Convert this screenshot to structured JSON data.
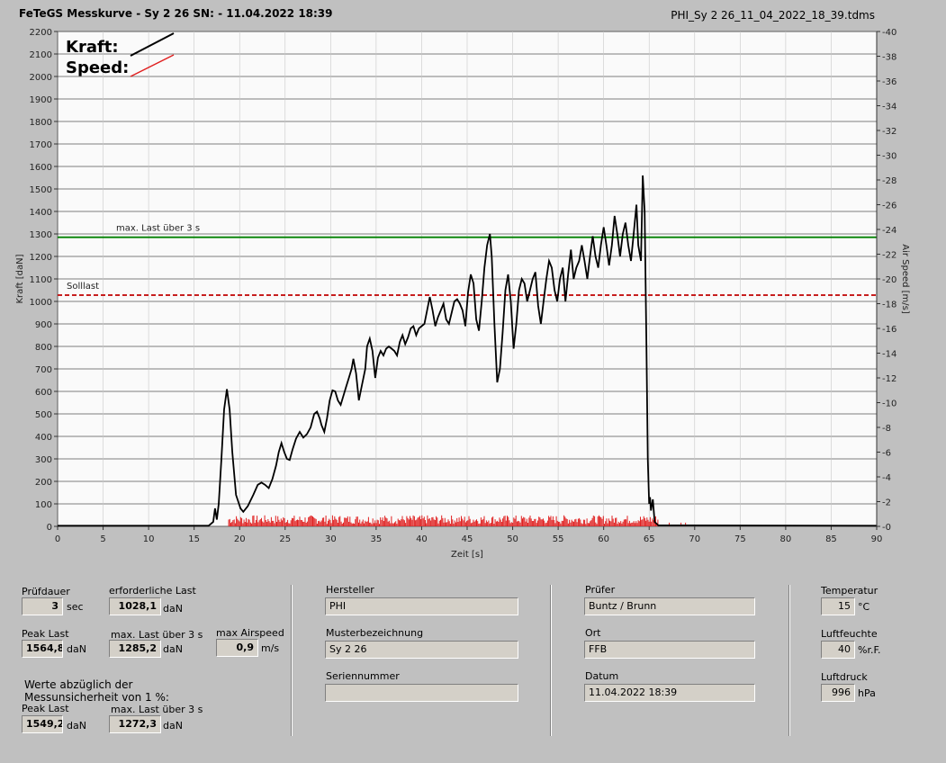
{
  "header": {
    "title": "FeTeGS Messkurve - Sy 2 26  SN:  - 11.04.2022 18:39",
    "filename": "PHI_Sy 2 26_11_04_2022_18_39.tdms"
  },
  "chart_data": {
    "type": "line",
    "xlabel": "Zeit [s]",
    "ylabel": "Kraft [daN]",
    "y2label": "Air Speed [m/s]",
    "xlim": [
      0,
      90
    ],
    "ylim": [
      0,
      2200
    ],
    "y2lim": [
      0,
      40
    ],
    "xticks": [
      0,
      5,
      10,
      15,
      20,
      25,
      30,
      35,
      40,
      45,
      50,
      55,
      60,
      65,
      70,
      75,
      80,
      85,
      90
    ],
    "yticks": [
      0,
      100,
      200,
      300,
      400,
      500,
      600,
      700,
      800,
      900,
      1000,
      1100,
      1200,
      1300,
      1400,
      1500,
      1600,
      1700,
      1800,
      1900,
      2000,
      2100,
      2200
    ],
    "y2ticks": [
      0,
      2,
      4,
      6,
      8,
      10,
      12,
      14,
      16,
      18,
      20,
      22,
      24,
      26,
      28,
      30,
      32,
      34,
      36,
      38,
      40
    ],
    "grid": true,
    "legend": {
      "placement": "top-left",
      "entries": [
        {
          "name": "Kraft:",
          "color": "#000000"
        },
        {
          "name": "Speed:",
          "color": "#e02020"
        }
      ]
    },
    "reference_lines": [
      {
        "label": "max. Last über  3 s",
        "y": 1285.2,
        "color": "#008000",
        "style": "solid"
      },
      {
        "label": "Solllast",
        "y": 1028.1,
        "color": "#c00000",
        "style": "dashed"
      }
    ],
    "series": [
      {
        "name": "Kraft:",
        "color": "#000000",
        "points": [
          [
            0,
            3
          ],
          [
            16.6,
            3
          ],
          [
            17.1,
            20
          ],
          [
            17.3,
            80
          ],
          [
            17.5,
            30
          ],
          [
            17.7,
            100
          ],
          [
            18.0,
            300
          ],
          [
            18.3,
            520
          ],
          [
            18.6,
            610
          ],
          [
            18.9,
            520
          ],
          [
            19.2,
            330
          ],
          [
            19.6,
            140
          ],
          [
            20.1,
            80
          ],
          [
            20.4,
            65
          ],
          [
            20.9,
            90
          ],
          [
            21.5,
            140
          ],
          [
            22.0,
            185
          ],
          [
            22.4,
            195
          ],
          [
            22.8,
            185
          ],
          [
            23.2,
            170
          ],
          [
            23.6,
            210
          ],
          [
            24.0,
            270
          ],
          [
            24.3,
            330
          ],
          [
            24.6,
            370
          ],
          [
            24.9,
            330
          ],
          [
            25.2,
            300
          ],
          [
            25.5,
            295
          ],
          [
            25.8,
            340
          ],
          [
            26.2,
            390
          ],
          [
            26.6,
            420
          ],
          [
            27.0,
            395
          ],
          [
            27.4,
            410
          ],
          [
            27.8,
            440
          ],
          [
            28.2,
            500
          ],
          [
            28.5,
            510
          ],
          [
            28.8,
            480
          ],
          [
            29.0,
            450
          ],
          [
            29.3,
            420
          ],
          [
            29.6,
            480
          ],
          [
            29.9,
            560
          ],
          [
            30.2,
            605
          ],
          [
            30.5,
            600
          ],
          [
            30.8,
            560
          ],
          [
            31.1,
            540
          ],
          [
            31.4,
            580
          ],
          [
            31.7,
            620
          ],
          [
            32.0,
            660
          ],
          [
            32.3,
            700
          ],
          [
            32.5,
            745
          ],
          [
            32.8,
            680
          ],
          [
            33.1,
            560
          ],
          [
            33.4,
            620
          ],
          [
            33.8,
            700
          ],
          [
            34.0,
            800
          ],
          [
            34.3,
            835
          ],
          [
            34.6,
            780
          ],
          [
            34.9,
            660
          ],
          [
            35.2,
            750
          ],
          [
            35.5,
            780
          ],
          [
            35.8,
            760
          ],
          [
            36.1,
            790
          ],
          [
            36.4,
            800
          ],
          [
            36.7,
            790
          ],
          [
            37.0,
            780
          ],
          [
            37.3,
            760
          ],
          [
            37.6,
            820
          ],
          [
            37.9,
            850
          ],
          [
            38.2,
            810
          ],
          [
            38.5,
            840
          ],
          [
            38.8,
            880
          ],
          [
            39.1,
            890
          ],
          [
            39.4,
            850
          ],
          [
            39.7,
            880
          ],
          [
            40.0,
            890
          ],
          [
            40.3,
            900
          ],
          [
            40.6,
            960
          ],
          [
            40.9,
            1020
          ],
          [
            41.2,
            960
          ],
          [
            41.5,
            890
          ],
          [
            41.8,
            930
          ],
          [
            42.1,
            960
          ],
          [
            42.4,
            990
          ],
          [
            42.7,
            920
          ],
          [
            43.0,
            900
          ],
          [
            43.3,
            950
          ],
          [
            43.6,
            1000
          ],
          [
            43.9,
            1010
          ],
          [
            44.2,
            990
          ],
          [
            44.5,
            960
          ],
          [
            44.8,
            890
          ],
          [
            45.1,
            1040
          ],
          [
            45.4,
            1120
          ],
          [
            45.7,
            1080
          ],
          [
            46.0,
            920
          ],
          [
            46.3,
            870
          ],
          [
            46.6,
            1000
          ],
          [
            46.9,
            1150
          ],
          [
            47.2,
            1250
          ],
          [
            47.5,
            1300
          ],
          [
            47.7,
            1200
          ],
          [
            48.0,
            900
          ],
          [
            48.3,
            640
          ],
          [
            48.6,
            700
          ],
          [
            48.9,
            860
          ],
          [
            49.2,
            1050
          ],
          [
            49.5,
            1120
          ],
          [
            49.8,
            1000
          ],
          [
            50.1,
            790
          ],
          [
            50.4,
            900
          ],
          [
            50.7,
            1050
          ],
          [
            51.0,
            1100
          ],
          [
            51.3,
            1080
          ],
          [
            51.6,
            1000
          ],
          [
            51.9,
            1050
          ],
          [
            52.2,
            1100
          ],
          [
            52.5,
            1130
          ],
          [
            52.8,
            980
          ],
          [
            53.1,
            900
          ],
          [
            53.4,
            1000
          ],
          [
            53.7,
            1100
          ],
          [
            54.0,
            1180
          ],
          [
            54.3,
            1150
          ],
          [
            54.6,
            1050
          ],
          [
            54.9,
            1000
          ],
          [
            55.2,
            1100
          ],
          [
            55.5,
            1150
          ],
          [
            55.8,
            1000
          ],
          [
            56.1,
            1120
          ],
          [
            56.4,
            1230
          ],
          [
            56.7,
            1100
          ],
          [
            57.0,
            1150
          ],
          [
            57.3,
            1180
          ],
          [
            57.6,
            1250
          ],
          [
            57.9,
            1180
          ],
          [
            58.2,
            1100
          ],
          [
            58.5,
            1200
          ],
          [
            58.8,
            1290
          ],
          [
            59.1,
            1200
          ],
          [
            59.4,
            1150
          ],
          [
            59.7,
            1250
          ],
          [
            60.0,
            1330
          ],
          [
            60.3,
            1250
          ],
          [
            60.6,
            1160
          ],
          [
            60.9,
            1250
          ],
          [
            61.2,
            1380
          ],
          [
            61.5,
            1300
          ],
          [
            61.8,
            1200
          ],
          [
            62.1,
            1300
          ],
          [
            62.4,
            1350
          ],
          [
            62.7,
            1250
          ],
          [
            63.0,
            1180
          ],
          [
            63.3,
            1300
          ],
          [
            63.6,
            1430
          ],
          [
            63.8,
            1250
          ],
          [
            64.1,
            1180
          ],
          [
            64.3,
            1560
          ],
          [
            64.5,
            1400
          ],
          [
            64.7,
            800
          ],
          [
            64.85,
            300
          ],
          [
            65.0,
            100
          ],
          [
            65.1,
            130
          ],
          [
            65.2,
            70
          ],
          [
            65.4,
            120
          ],
          [
            65.6,
            20
          ],
          [
            66.0,
            5
          ],
          [
            90,
            3
          ]
        ]
      },
      {
        "name": "Speed:",
        "color": "#e02020",
        "baseline_noise_until_s": 66,
        "approx_level_ms": 0.5
      }
    ]
  },
  "panel": {
    "pruefdauer_label": "Prüfdauer",
    "pruefdauer_value": "3",
    "pruefdauer_unit": "sec",
    "erf_last_label": "erforderliche Last",
    "erf_last_value": "1028,1",
    "erf_last_unit": "daN",
    "peak_last_label": "Peak Last",
    "peak_last_value": "1564,8",
    "peak_last_unit": "daN",
    "max_last_label": "max. Last über  3 s",
    "max_last_value": "1285,2",
    "max_last_unit": "daN",
    "max_airspeed_label": "max Airspeed",
    "max_airspeed_value": "0,9",
    "max_airspeed_unit": "m/s",
    "note_line1": "Werte abzüglich der",
    "note_line2": "Messunsicherheit von 1   %:",
    "peak_last2_label": "Peak Last",
    "peak_last2_value": "1549,2",
    "peak_last2_unit": "daN",
    "max_last2_label": "max. Last über  3 s",
    "max_last2_value": "1272,3",
    "max_last2_unit": "daN",
    "hersteller_label": "Hersteller",
    "hersteller_value": "PHI",
    "muster_label": "Musterbezeichnung",
    "muster_value": "Sy 2 26",
    "serien_label": "Seriennummer",
    "serien_value": "",
    "pruefer_label": "Prüfer",
    "pruefer_value": "Buntz / Brunn",
    "ort_label": "Ort",
    "ort_value": "FFB",
    "datum_label": "Datum",
    "datum_value": "11.04.2022 18:39",
    "temp_label": "Temperatur",
    "temp_value": "15",
    "temp_unit": "°C",
    "feuchte_label": "Luftfeuchte",
    "feuchte_value": "40",
    "feuchte_unit": "%r.F.",
    "druck_label": "Luftdruck",
    "druck_value": "996",
    "druck_unit": "hPa"
  }
}
